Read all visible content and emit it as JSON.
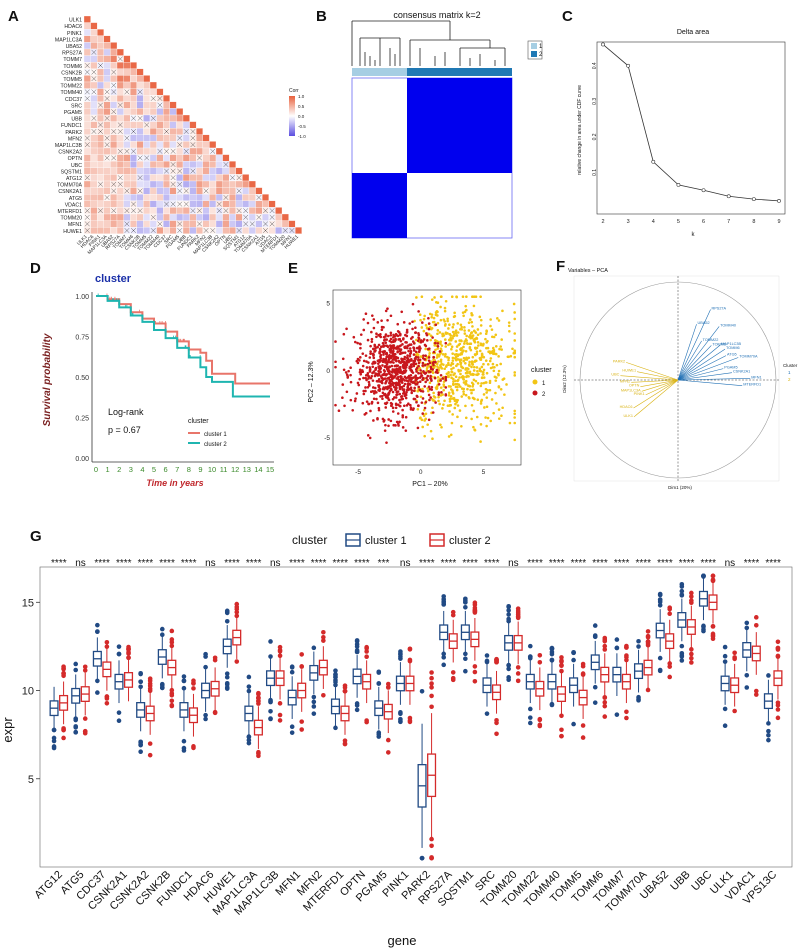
{
  "panels": {
    "A": {
      "letter": "A",
      "genes": [
        "ULK1",
        "HDAC6",
        "PINK1",
        "MAP1LC3A",
        "UBA52",
        "RPS27A",
        "TOMM7",
        "TOMM6",
        "CSNK2B",
        "TOMM5",
        "TOMM22",
        "TOMM40",
        "CDC37",
        "SRC",
        "PGAM5",
        "UBB",
        "FUNDC1",
        "PARK2",
        "MFN2",
        "MAP1LC3B",
        "CSNK2A2",
        "OPTN",
        "UBC",
        "SQSTM1",
        "ATG12",
        "TOMM70A",
        "CSNK2A1",
        "ATG5",
        "VDAC1",
        "MTERFD1",
        "TOMM20",
        "MFN1",
        "HUWE1"
      ],
      "legend_title": "Corr",
      "legend_ticks": [
        "1.0",
        "0.5",
        "0.0",
        "-0.5",
        "-1.0"
      ],
      "colors": {
        "pos": "#e8603c",
        "neg": "#5b4ee0",
        "zero": "#ffffff"
      }
    },
    "B": {
      "letter": "B",
      "title": "consensus matrix k=2",
      "legend": [
        "1",
        "2"
      ],
      "colors": {
        "c1": "#a6cee3",
        "c2": "#1f78b4",
        "block": "#0000ee"
      }
    },
    "C": {
      "letter": "C",
      "title": "Delta area",
      "xlabel": "k",
      "ylabel": "relative change in area under CDF curve"
    },
    "D": {
      "letter": "D",
      "title": "cluster",
      "ylabel": "Survival probability",
      "xlabel": "Time in years",
      "logrank": "Log-rank",
      "pvalue": "p = 0.67",
      "legend_title": "cluster",
      "legend": [
        "cluster 1",
        "cluster 2"
      ],
      "colors": {
        "c1": "#e8756a",
        "c2": "#1fb5b0"
      }
    },
    "E": {
      "letter": "E",
      "xlabel": "PC1 – 20%",
      "ylabel": "PC2 – 12.3%",
      "legend_title": "cluster",
      "legend": [
        "1",
        "2"
      ],
      "colors": {
        "c1": "#f2c515",
        "c2": "#c8171d"
      }
    },
    "F": {
      "letter": "F",
      "title": "Variables – PCA",
      "xlabel": "Dim1 (20%)",
      "ylabel": "Dim2 (12.3%)",
      "legend_title": "Cluster",
      "legend": [
        "1",
        "2"
      ],
      "labels1": [
        "UBA52",
        "RPS27A",
        "TOMM22",
        "TOMM40",
        "TOMM5",
        "MAP1LC3B",
        "TOMM6",
        "ATG5",
        "TOMM70A",
        "PGAM5",
        "CSNK2A1",
        "MFN1",
        "MTERFD1"
      ],
      "labels2": [
        "ULK1",
        "HDAC6",
        "PINK1",
        "MAP1LC3A",
        "OPTN",
        "MFN2",
        "UBC",
        "HUWE1",
        "PARK2"
      ]
    },
    "G": {
      "letter": "G",
      "legend_title": "cluster",
      "legend": [
        "cluster 1",
        "cluster 2"
      ],
      "xlabel": "gene",
      "ylabel": "expr",
      "colors": {
        "c1": "#214a84",
        "c2": "#d42a2a"
      }
    }
  },
  "chart_data": [
    {
      "panel": "C",
      "type": "line",
      "title": "Delta area",
      "xlabel": "k",
      "ylabel": "relative change in area under CDF curve",
      "x": [
        2,
        3,
        4,
        5,
        6,
        7,
        8,
        9
      ],
      "y": [
        0.46,
        0.4,
        0.13,
        0.065,
        0.05,
        0.033,
        0.025,
        0.02
      ],
      "xlim": [
        2,
        9
      ],
      "ylim": [
        0,
        0.45
      ],
      "yticks": [
        0.1,
        0.2,
        0.3,
        0.4
      ]
    },
    {
      "panel": "D",
      "type": "line",
      "title": "cluster",
      "xlabel": "Time in years",
      "ylabel": "Survival probability",
      "xlim": [
        0,
        15
      ],
      "ylim": [
        0,
        1
      ],
      "xticks": [
        0,
        1,
        2,
        3,
        4,
        5,
        6,
        7,
        8,
        9,
        10,
        11,
        12,
        13,
        14,
        15
      ],
      "yticks": [
        "0.00",
        "0.25",
        "0.50",
        "0.75",
        "1.00"
      ],
      "series": [
        {
          "name": "cluster 1",
          "x": [
            0,
            1,
            2,
            3,
            4,
            5,
            6,
            7,
            8,
            9,
            9.5,
            10,
            11,
            12,
            13,
            15
          ],
          "y": [
            1.0,
            0.98,
            0.95,
            0.9,
            0.86,
            0.83,
            0.78,
            0.72,
            0.67,
            0.65,
            0.6,
            0.52,
            0.52,
            0.46,
            0.46,
            0.46
          ]
        },
        {
          "name": "cluster 2",
          "x": [
            0,
            1,
            2,
            3,
            4,
            5,
            6,
            7,
            8,
            9,
            9.5,
            10,
            11,
            11.8,
            12,
            15
          ],
          "y": [
            1.0,
            0.97,
            0.93,
            0.88,
            0.84,
            0.79,
            0.74,
            0.68,
            0.62,
            0.56,
            0.5,
            0.47,
            0.47,
            0.38,
            0.38,
            0.38
          ]
        }
      ]
    },
    {
      "panel": "E",
      "type": "scatter",
      "xlabel": "PC1 – 20%",
      "ylabel": "PC2 – 12.3%",
      "xlim": [
        -7,
        8
      ],
      "ylim": [
        -7,
        6
      ],
      "xticks": [
        -5,
        0,
        5
      ],
      "yticks": [
        -5,
        0,
        5
      ],
      "series": [
        {
          "name": "1",
          "x_center": 3,
          "y_center": 0.5,
          "n": 700
        },
        {
          "name": "2",
          "x_center": -2,
          "y_center": 0,
          "n": 850
        }
      ]
    },
    {
      "panel": "G",
      "type": "bar",
      "subtype": "boxplot",
      "xlabel": "gene",
      "ylabel": "expr",
      "ylim": [
        0,
        17
      ],
      "yticks": [
        5,
        10,
        15
      ],
      "categories": [
        "ATG12",
        "ATG5",
        "CDC37",
        "CSNK2A1",
        "CSNK2A2",
        "CSNK2B",
        "FUNDC1",
        "HDAC6",
        "HUWE1",
        "MAP1LC3A",
        "MAP1LC3B",
        "MFN1",
        "MFN2",
        "MTERFD1",
        "OPTN",
        "PGAM5",
        "PINK1",
        "PARK2",
        "RPS27A",
        "SQSTM1",
        "SRC",
        "TOMM20",
        "TOMM22",
        "TOMM40",
        "TOMM5",
        "TOMM6",
        "TOMM7",
        "TOMM70A",
        "UBA52",
        "UBB",
        "UBC",
        "ULK1",
        "VDAC1",
        "VPS13C"
      ],
      "significance": [
        "****",
        "ns",
        "****",
        "****",
        "****",
        "****",
        "****",
        "ns",
        "****",
        "****",
        "ns",
        "****",
        "****",
        "****",
        "****",
        "***",
        "ns",
        "****",
        "****",
        "****",
        "****",
        "ns",
        "****",
        "****",
        "****",
        "****",
        "****",
        "****",
        "****",
        "****",
        "****",
        "ns",
        "****",
        "****"
      ],
      "series": [
        {
          "name": "cluster 1",
          "values": [
            9.0,
            9.7,
            11.8,
            10.5,
            8.9,
            11.9,
            8.9,
            10.0,
            12.5,
            8.7,
            10.7,
            9.6,
            11.0,
            9.1,
            10.8,
            9.0,
            10.4,
            4.6,
            13.3,
            13.3,
            10.3,
            12.7,
            10.5,
            10.5,
            10.3,
            11.6,
            10.9,
            11.1,
            13.4,
            14.0,
            15.2,
            10.4,
            12.3,
            9.4
          ]
        },
        {
          "name": "cluster 2",
          "values": [
            9.3,
            9.8,
            11.2,
            10.6,
            8.7,
            11.3,
            8.6,
            10.1,
            13.0,
            7.9,
            10.7,
            10.0,
            11.3,
            8.7,
            10.5,
            8.8,
            10.4,
            5.2,
            12.8,
            12.9,
            9.9,
            12.7,
            10.1,
            9.8,
            9.6,
            10.9,
            10.5,
            11.3,
            12.8,
            13.6,
            15.0,
            10.3,
            12.1,
            10.7
          ]
        }
      ]
    }
  ]
}
